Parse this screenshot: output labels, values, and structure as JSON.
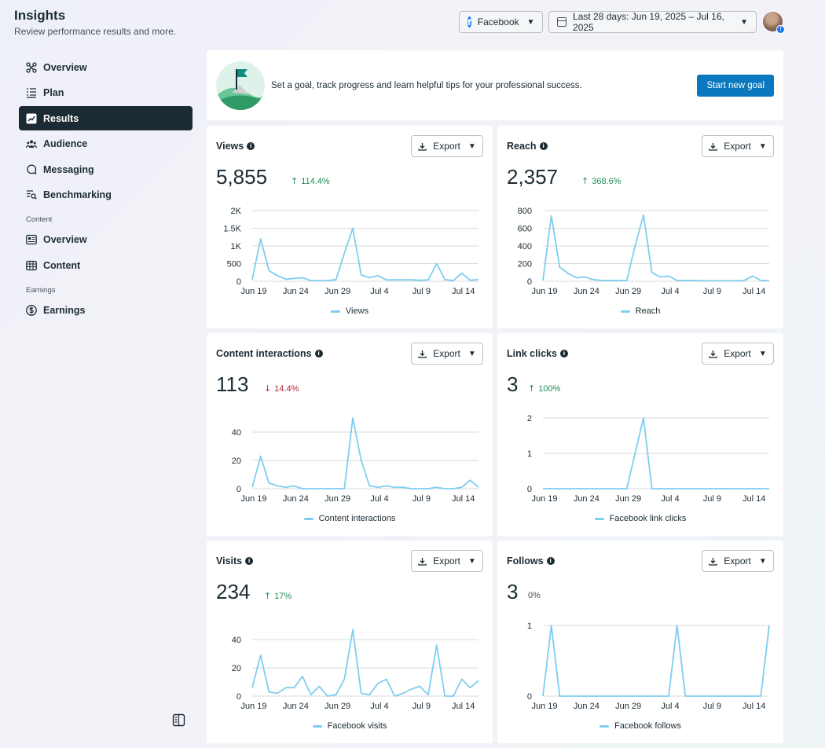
{
  "header": {
    "title": "Insights",
    "subtitle": "Review performance results and more."
  },
  "topbar": {
    "platform": "Facebook",
    "date_range": "Last 28 days: Jun 19, 2025 – Jul 16, 2025"
  },
  "sidebar": {
    "items": [
      {
        "label": "Overview",
        "icon": "overview-icon"
      },
      {
        "label": "Plan",
        "icon": "plan-list-icon"
      },
      {
        "label": "Results",
        "icon": "results-chart-icon",
        "active": true
      },
      {
        "label": "Audience",
        "icon": "audience-icon"
      },
      {
        "label": "Messaging",
        "icon": "messaging-icon"
      },
      {
        "label": "Benchmarking",
        "icon": "benchmarking-icon"
      }
    ],
    "content_section": "Content",
    "content_items": [
      {
        "label": "Overview",
        "icon": "content-overview-icon"
      },
      {
        "label": "Content",
        "icon": "content-table-icon"
      }
    ],
    "earnings_section": "Earnings",
    "earnings_items": [
      {
        "label": "Earnings",
        "icon": "dollar-icon"
      }
    ]
  },
  "goal": {
    "text": "Set a goal, track progress and learn helpful tips for your professional success.",
    "button": "Start new goal"
  },
  "export_label": "Export",
  "colors": {
    "line": "#7fcdf0",
    "up": "#1d8f57",
    "down": "#b32b35",
    "primary_button": "#0a78be",
    "active_nav": "#1c2b33"
  },
  "cards": [
    {
      "title": "Views",
      "value": "5,855",
      "delta": "114.4%",
      "direction": "up",
      "legend": "Views"
    },
    {
      "title": "Reach",
      "value": "2,357",
      "delta": "368.6%",
      "direction": "up",
      "legend": "Reach"
    },
    {
      "title": "Content interactions",
      "value": "113",
      "delta": "14.4%",
      "direction": "down",
      "legend": "Content interactions"
    },
    {
      "title": "Link clicks",
      "value": "3",
      "delta": "100%",
      "direction": "up",
      "legend": "Facebook link clicks"
    },
    {
      "title": "Visits",
      "value": "234",
      "delta": "17%",
      "direction": "up",
      "legend": "Facebook visits"
    },
    {
      "title": "Follows",
      "value": "3",
      "delta": "0%",
      "direction": "flat",
      "legend": "Facebook follows"
    }
  ],
  "chart_data": [
    {
      "type": "line",
      "series": [
        {
          "name": "Views",
          "values": [
            50,
            1200,
            300,
            160,
            60,
            80,
            100,
            20,
            20,
            20,
            50,
            800,
            1500,
            180,
            100,
            160,
            40,
            40,
            40,
            40,
            30,
            40,
            500,
            50,
            20,
            230,
            30,
            50
          ]
        }
      ],
      "x_tick_labels": [
        "Jun 19",
        "Jun 24",
        "Jun 29",
        "Jul 4",
        "Jul 9",
        "Jul 14"
      ],
      "y_ticks": [
        0,
        500,
        1000,
        1500,
        2000
      ],
      "y_tick_labels": [
        "0",
        "500",
        "1K",
        "1.5K",
        "2K"
      ],
      "ylim": [
        0,
        2000
      ]
    },
    {
      "type": "line",
      "series": [
        {
          "name": "Reach",
          "values": [
            10,
            740,
            160,
            90,
            40,
            50,
            20,
            10,
            10,
            10,
            10,
            400,
            750,
            100,
            50,
            60,
            10,
            10,
            10,
            5,
            5,
            5,
            5,
            5,
            10,
            60,
            10,
            5
          ]
        }
      ],
      "x_tick_labels": [
        "Jun 19",
        "Jun 24",
        "Jun 29",
        "Jul 4",
        "Jul 9",
        "Jul 14"
      ],
      "y_ticks": [
        0,
        200,
        400,
        600,
        800
      ],
      "y_tick_labels": [
        "0",
        "200",
        "400",
        "600",
        "800"
      ],
      "ylim": [
        0,
        800
      ]
    },
    {
      "type": "line",
      "series": [
        {
          "name": "Content interactions",
          "values": [
            1,
            23,
            4,
            2,
            1,
            2,
            0,
            0,
            0,
            0,
            0,
            0,
            50,
            20,
            2,
            1,
            2,
            1,
            1,
            0,
            0,
            0,
            1,
            0,
            0,
            1,
            6,
            1
          ]
        }
      ],
      "x_tick_labels": [
        "Jun 19",
        "Jun 24",
        "Jun 29",
        "Jul 4",
        "Jul 9",
        "Jul 14"
      ],
      "y_ticks": [
        0,
        20,
        40
      ],
      "y_tick_labels": [
        "0",
        "20",
        "40"
      ],
      "ylim": [
        0,
        50
      ]
    },
    {
      "type": "line",
      "series": [
        {
          "name": "Facebook link clicks",
          "values": [
            0,
            0,
            0,
            0,
            0,
            0,
            0,
            0,
            0,
            0,
            0,
            1,
            2,
            0,
            0,
            0,
            0,
            0,
            0,
            0,
            0,
            0,
            0,
            0,
            0,
            0,
            0,
            0
          ]
        }
      ],
      "x_tick_labels": [
        "Jun 19",
        "Jun 24",
        "Jun 29",
        "Jul 4",
        "Jul 9",
        "Jul 14"
      ],
      "y_ticks": [
        0,
        1,
        2
      ],
      "y_tick_labels": [
        "0",
        "1",
        "2"
      ],
      "ylim": [
        0,
        2
      ]
    },
    {
      "type": "line",
      "series": [
        {
          "name": "Facebook visits",
          "values": [
            6,
            29,
            3,
            2,
            6,
            6,
            14,
            1,
            7,
            0,
            1,
            12,
            47,
            2,
            1,
            9,
            12,
            0,
            2,
            5,
            7,
            1,
            36,
            0,
            0,
            12,
            6,
            11
          ]
        }
      ],
      "x_tick_labels": [
        "Jun 19",
        "Jun 24",
        "Jun 29",
        "Jul 4",
        "Jul 9",
        "Jul 14"
      ],
      "y_ticks": [
        0,
        20,
        40
      ],
      "y_tick_labels": [
        "0",
        "20",
        "40"
      ],
      "ylim": [
        0,
        50
      ]
    },
    {
      "type": "line",
      "series": [
        {
          "name": "Facebook follows",
          "values": [
            0,
            1,
            0,
            0,
            0,
            0,
            0,
            0,
            0,
            0,
            0,
            0,
            0,
            0,
            0,
            0,
            1,
            0,
            0,
            0,
            0,
            0,
            0,
            0,
            0,
            0,
            0,
            1
          ]
        }
      ],
      "x_tick_labels": [
        "Jun 19",
        "Jun 24",
        "Jun 29",
        "Jul 4",
        "Jul 9",
        "Jul 14"
      ],
      "y_ticks": [
        0,
        1
      ],
      "y_tick_labels": [
        "0",
        "1"
      ],
      "ylim": [
        0,
        1
      ]
    }
  ]
}
